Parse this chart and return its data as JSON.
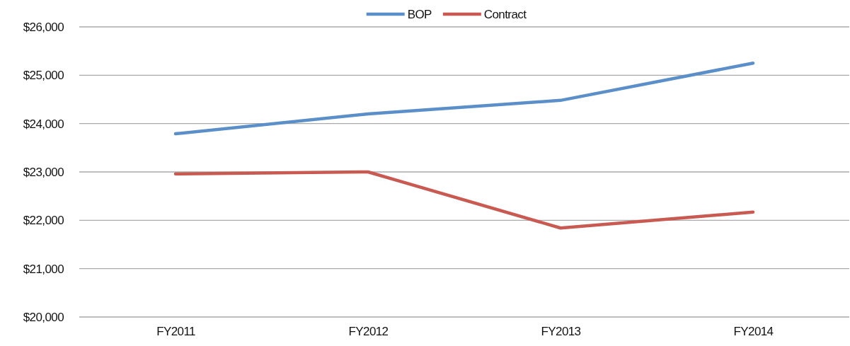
{
  "chart_data": {
    "type": "line",
    "categories": [
      "FY2011",
      "FY2012",
      "FY2013",
      "FY2014"
    ],
    "series": [
      {
        "name": "BOP",
        "color": "#5b8fc9",
        "values": [
          23790,
          24200,
          24480,
          25250
        ]
      },
      {
        "name": "Contract",
        "color": "#c95a52",
        "values": [
          22960,
          23000,
          21840,
          22170
        ]
      }
    ],
    "ylim": [
      20000,
      26000
    ],
    "yticks": [
      {
        "value": 20000,
        "label": "$20,000"
      },
      {
        "value": 21000,
        "label": "$21,000"
      },
      {
        "value": 22000,
        "label": "$22,000"
      },
      {
        "value": 23000,
        "label": "$23,000"
      },
      {
        "value": 24000,
        "label": "$24,000"
      },
      {
        "value": 25000,
        "label": "$25,000"
      },
      {
        "value": 26000,
        "label": "$26,000"
      }
    ],
    "grid": "y",
    "legend": "top",
    "marker": "none",
    "line_style": "solid"
  }
}
